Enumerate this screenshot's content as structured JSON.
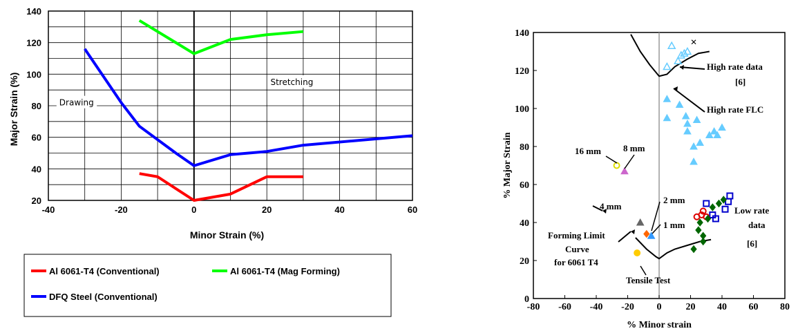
{
  "chart_data": [
    {
      "type": "line",
      "xlabel": "Minor Strain (%)",
      "ylabel": "Major Strain (%)",
      "xlim": [
        -40,
        60
      ],
      "ylim": [
        20,
        140
      ],
      "xticks": [
        -40,
        -20,
        0,
        20,
        40,
        60
      ],
      "yticks": [
        20,
        40,
        60,
        80,
        100,
        120,
        140
      ],
      "grid": true,
      "legend_position": "bottom",
      "series": [
        {
          "name": "Al 6061-T4 (Conventional)",
          "color": "#ff0000",
          "x": [
            -15,
            -10,
            0,
            10,
            20,
            30
          ],
          "y": [
            37,
            35,
            20,
            24,
            35,
            35
          ]
        },
        {
          "name": "Al 6061-T4 (Mag Forming)",
          "color": "#00ff00",
          "x": [
            -15,
            0,
            10,
            20,
            30
          ],
          "y": [
            134,
            113,
            122,
            125,
            127
          ]
        },
        {
          "name": "DFQ Steel (Conventional)",
          "color": "#0000ff",
          "x": [
            -30,
            -20,
            -15,
            -5,
            0,
            10,
            20,
            30,
            60
          ],
          "y": [
            116,
            82,
            67,
            50,
            42,
            49,
            51,
            55,
            61
          ]
        }
      ],
      "annotations": [
        {
          "text": "Drawing",
          "x": -37,
          "y": 81
        },
        {
          "text": "Stretching",
          "x": 21,
          "y": 94
        }
      ]
    },
    {
      "type": "scatter",
      "xlabel": "% Minor strain",
      "ylabel": "% Major Strain",
      "xlim": [
        -80,
        80
      ],
      "ylim": [
        0,
        140
      ],
      "xticks": [
        -80,
        -60,
        -40,
        -20,
        0,
        20,
        40,
        60,
        80
      ],
      "yticks": [
        0,
        20,
        40,
        60,
        80,
        100,
        120,
        140
      ],
      "grid": false,
      "series": [
        {
          "name": "High rate data [6]",
          "marker": "triangle-open",
          "color": "#66ccff",
          "x": [
            5,
            8,
            12,
            14,
            16,
            18
          ],
          "y": [
            122,
            133,
            125,
            128,
            129,
            130
          ]
        },
        {
          "name": "High rate data (solid)",
          "marker": "triangle",
          "color": "#66ccff",
          "x": [
            5,
            5,
            13,
            17,
            18,
            18,
            22,
            22,
            24,
            26,
            32,
            35,
            37,
            40
          ],
          "y": [
            105,
            95,
            102,
            96,
            92,
            88,
            72,
            80,
            94,
            82,
            86,
            88,
            86,
            90
          ]
        },
        {
          "name": "Low rate data [6] (open squares)",
          "marker": "square-open",
          "color": "#0000cc",
          "x": [
            30,
            34,
            36,
            42,
            44,
            45
          ],
          "y": [
            50,
            44,
            42,
            47,
            51,
            54
          ]
        },
        {
          "name": "Low rate data [6] (open circles)",
          "marker": "circle-open",
          "color": "#dd0000",
          "x": [
            24,
            27,
            28,
            30
          ],
          "y": [
            43,
            44,
            46,
            43
          ]
        },
        {
          "name": "Low rate data [6] (green diamonds)",
          "marker": "diamond",
          "color": "#006600",
          "x": [
            25,
            26,
            28,
            28,
            31,
            34,
            38,
            41,
            22
          ],
          "y": [
            36,
            40,
            33,
            30,
            42,
            48,
            50,
            52,
            26
          ]
        },
        {
          "name": "16 mm",
          "marker": "circle-open",
          "color": "#dddd00",
          "x": [
            -27
          ],
          "y": [
            70
          ]
        },
        {
          "name": "8 mm",
          "marker": "triangle",
          "color": "#cc66cc",
          "x": [
            -22
          ],
          "y": [
            67
          ]
        },
        {
          "name": "4 mm",
          "marker": "triangle",
          "color": "#666666",
          "x": [
            -12
          ],
          "y": [
            40
          ]
        },
        {
          "name": "2 mm",
          "marker": "diamond",
          "color": "#ff6600",
          "x": [
            -8
          ],
          "y": [
            34
          ]
        },
        {
          "name": "1 mm",
          "marker": "triangle",
          "color": "#3399ff",
          "x": [
            -5
          ],
          "y": [
            33
          ]
        },
        {
          "name": "Tensile Test",
          "marker": "circle",
          "color": "#ffcc00",
          "x": [
            -14
          ],
          "y": [
            24
          ]
        }
      ],
      "curves": [
        {
          "name": "High rate FLC",
          "x": [
            -18,
            -12,
            -6,
            0,
            5,
            10,
            18,
            25,
            32
          ],
          "y": [
            139,
            130,
            123,
            117,
            118,
            122,
            126,
            129,
            130
          ]
        },
        {
          "name": "Forming Limit Curve for 6061 T4",
          "x": [
            -15,
            -8,
            -2,
            0,
            5,
            10,
            18,
            26,
            33
          ],
          "y": [
            32,
            26,
            22,
            21,
            24,
            26,
            28,
            30,
            31
          ]
        }
      ],
      "annotations": [
        {
          "text": "High rate data"
        },
        {
          "text": "[6]"
        },
        {
          "text": "High rate FLC"
        },
        {
          "text": "16 mm"
        },
        {
          "text": "8 mm"
        },
        {
          "text": "4 mm"
        },
        {
          "text": "2 mm"
        },
        {
          "text": "1 mm"
        },
        {
          "text": "Low rate"
        },
        {
          "text": "data"
        },
        {
          "text": "[6]"
        },
        {
          "text": "Forming Limit"
        },
        {
          "text": "Curve"
        },
        {
          "text": "for 6061 T4"
        },
        {
          "text": "Tensile Test"
        }
      ]
    }
  ]
}
